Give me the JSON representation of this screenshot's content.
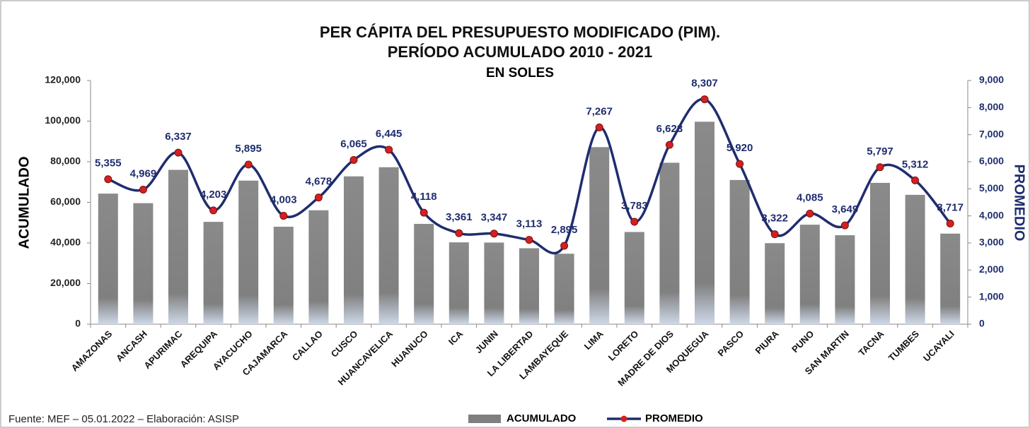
{
  "chart_data": {
    "type": "bar_line",
    "title": "PER CÁPITA DEL PRESUPUESTO MODIFICADO (PIM).",
    "subtitle": "PERÍODO ACUMULADO 2010 - 2021",
    "subtitle2": "EN SOLES",
    "y_label": "ACUMULADO",
    "y2_label": "PROMEDIO",
    "source": "Fuente: MEF – 05.01.2022 – Elaboración: ASISP",
    "categories": [
      "AMAZONAS",
      "ANCASH",
      "APURIMAC",
      "AREQUIPA",
      "AYACUCHO",
      "CAJAMARCA",
      "CALLAO",
      "CUSCO",
      "HUANCAVELICA",
      "HUANUCO",
      "ICA",
      "JUNIN",
      "LA LIBERTAD",
      "LAMBAYEQUE",
      "LIMA",
      "LORETO",
      "MADRE DE DIOS",
      "MOQUEGUA",
      "PASCO",
      "PIURA",
      "PUNO",
      "SAN MARTIN",
      "TACNA",
      "TUMBES",
      "UCAYALI"
    ],
    "series": [
      {
        "name": "ACUMULADO",
        "color": "#7f7f7f",
        "type": "bar",
        "values": [
          64300,
          59600,
          76000,
          50400,
          70700,
          48000,
          56100,
          72800,
          77300,
          49400,
          40300,
          40200,
          37400,
          34700,
          87200,
          45400,
          79500,
          99700,
          71000,
          39900,
          49000,
          43800,
          69600,
          63700,
          44600
        ]
      },
      {
        "name": "PROMEDIO",
        "color": "#1f2d6e",
        "type": "line",
        "axis": "y2",
        "marker_color": "#d32020",
        "values": [
          5355,
          4969,
          6337,
          4203,
          5895,
          4003,
          4678,
          6065,
          6445,
          4118,
          3361,
          3347,
          3113,
          2895,
          7267,
          3783,
          6623,
          8307,
          5920,
          3322,
          4085,
          3649,
          5797,
          5312,
          3717
        ],
        "value_labels": [
          "5,355",
          "4,969",
          "6,337",
          "4,203",
          "5,895",
          "4,003",
          "4,678",
          "6,065",
          "6,445",
          "4,118",
          "3,361",
          "3,347",
          "3,113",
          "2,895",
          "7,267",
          "3,783",
          "6,623",
          "8,307",
          "5,920",
          "3,322",
          "4,085",
          "3,649",
          "5,797",
          "5,312",
          "3,717"
        ]
      }
    ],
    "ylim": [
      0,
      120000
    ],
    "yticks": [
      0,
      {
        "value": 20000,
        "label": "20,000"
      },
      {
        "value": 40000,
        "label": "40,000"
      },
      {
        "value": 60000,
        "label": "60,000"
      },
      {
        "value": 80000,
        "label": "80,000"
      },
      {
        "value": 100000,
        "label": "100,000"
      },
      {
        "value": 120000,
        "label": "120,000"
      }
    ],
    "y2lim": [
      0,
      9000
    ],
    "y2ticks": [
      0,
      {
        "value": 1000,
        "label": "1,000"
      },
      {
        "value": 2000,
        "label": "2,000"
      },
      {
        "value": 3000,
        "label": "3,000"
      },
      {
        "value": 4000,
        "label": "4,000"
      },
      {
        "value": 5000,
        "label": "5,000"
      },
      {
        "value": 6000,
        "label": "6,000"
      },
      {
        "value": 7000,
        "label": "7,000"
      },
      {
        "value": 8000,
        "label": "8,000"
      },
      {
        "value": 9000,
        "label": "9,000"
      }
    ],
    "legend": "bottom"
  }
}
